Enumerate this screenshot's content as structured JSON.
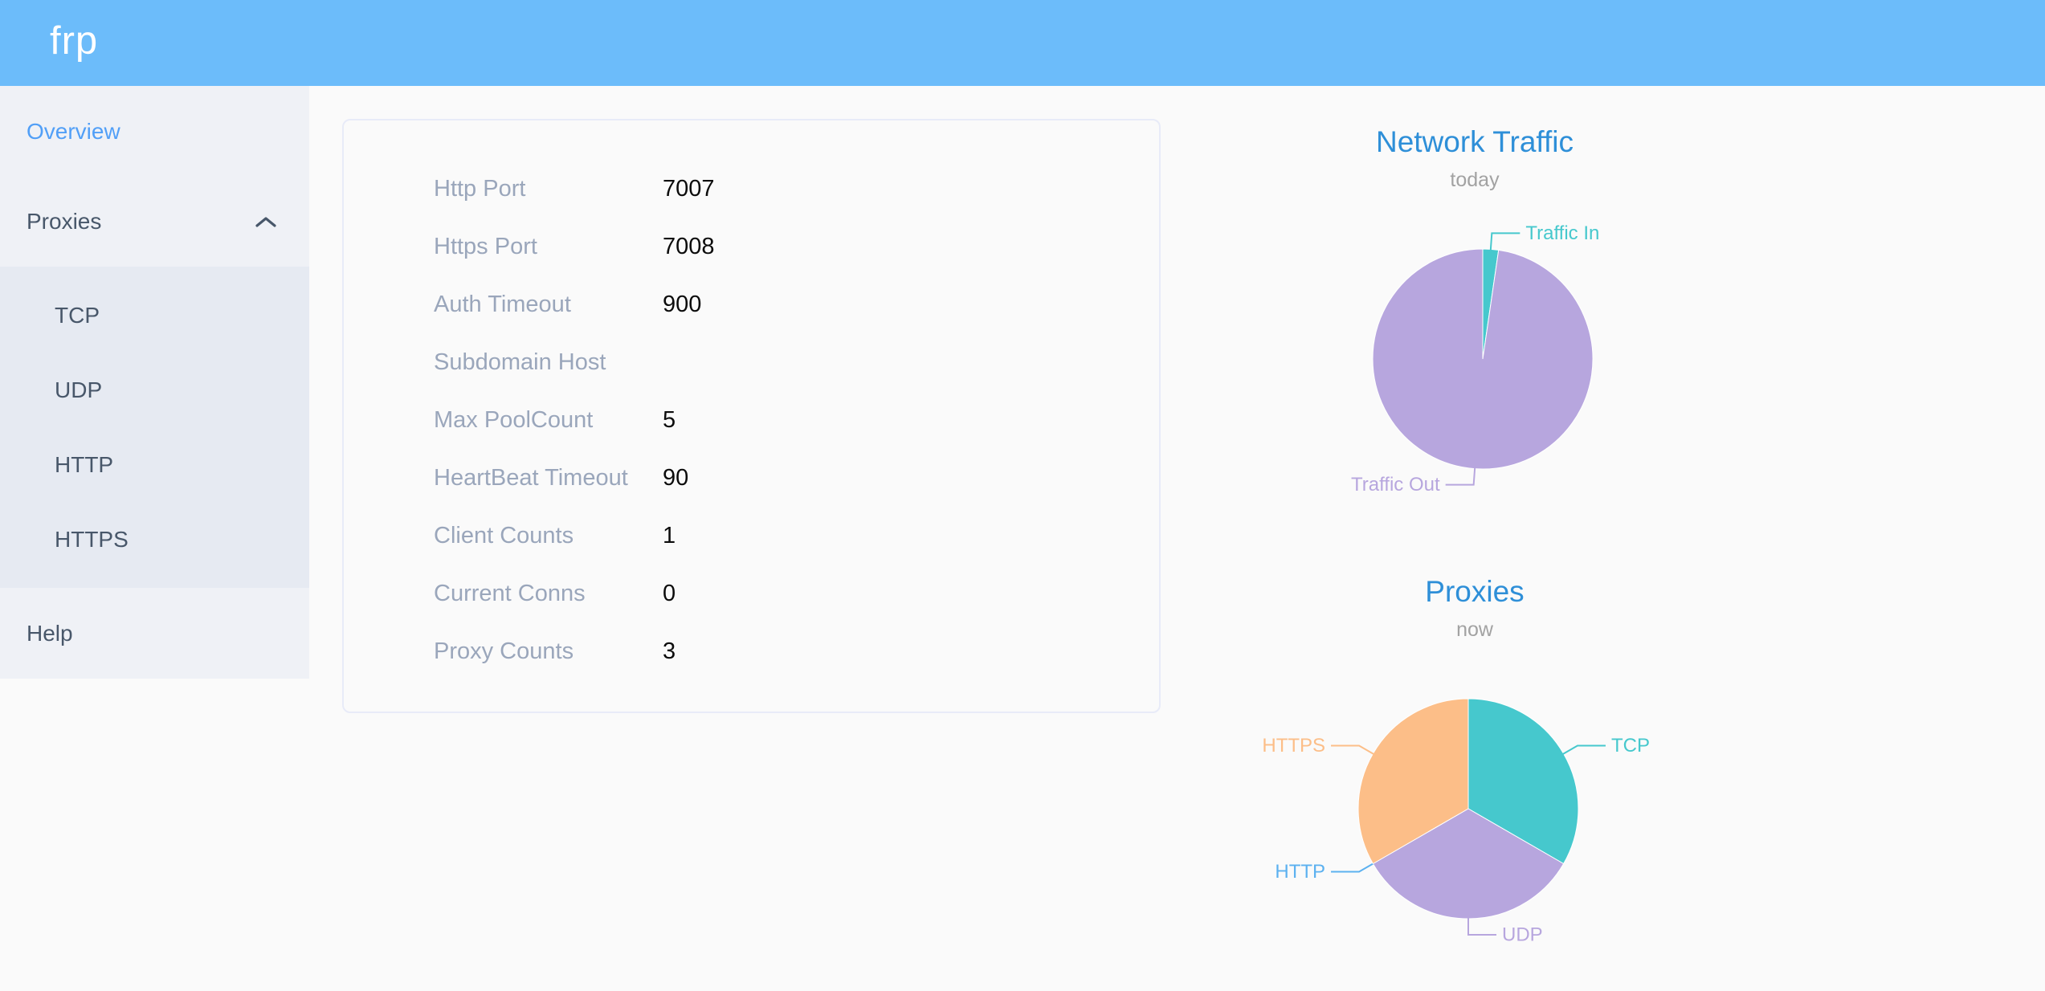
{
  "header": {
    "logo_text": "frp"
  },
  "sidebar": {
    "items": [
      {
        "id": "overview",
        "label": "Overview",
        "active": true
      },
      {
        "id": "proxies",
        "label": "Proxies",
        "expanded": true
      },
      {
        "id": "help",
        "label": "Help"
      }
    ],
    "proxies_children": [
      {
        "label": "TCP"
      },
      {
        "label": "UDP"
      },
      {
        "label": "HTTP"
      },
      {
        "label": "HTTPS"
      }
    ]
  },
  "server_info": {
    "rows": [
      {
        "label": "Http Port",
        "value": "7007"
      },
      {
        "label": "Https Port",
        "value": "7008"
      },
      {
        "label": "Auth Timeout",
        "value": "900"
      },
      {
        "label": "Subdomain Host",
        "value": ""
      },
      {
        "label": "Max PoolCount",
        "value": "5"
      },
      {
        "label": "HeartBeat Timeout",
        "value": "90"
      },
      {
        "label": "Client Counts",
        "value": "1"
      },
      {
        "label": "Current Conns",
        "value": "0"
      },
      {
        "label": "Proxy Counts",
        "value": "3"
      }
    ]
  },
  "chart_data": [
    {
      "type": "pie",
      "title": "Network Traffic",
      "subtitle": "today",
      "legend_position": "none",
      "labels": "outside-leader-lines",
      "value_unit": "percent_share_estimated",
      "series": [
        {
          "name": "Traffic In",
          "value": 2.3,
          "color": "#46c8cd"
        },
        {
          "name": "Traffic Out",
          "value": 97.7,
          "color": "#b7a6de"
        }
      ]
    },
    {
      "type": "pie",
      "title": "Proxies",
      "subtitle": "now",
      "legend_position": "none",
      "labels": "outside-leader-lines",
      "value_unit": "proxy_count",
      "series": [
        {
          "name": "TCP",
          "value": 1,
          "color": "#46c8cd"
        },
        {
          "name": "UDP",
          "value": 1,
          "color": "#b7a6de"
        },
        {
          "name": "HTTP",
          "value": 0,
          "color": "#5cb1f0"
        },
        {
          "name": "HTTPS",
          "value": 1,
          "color": "#fcbe88"
        }
      ]
    }
  ],
  "colors": {
    "header_bg": "#6cbcfa",
    "sidebar_bg": "#eff1f6",
    "submenu_bg": "#e6eaf2",
    "active_item": "#519ff7",
    "menu_text": "#48576a",
    "chart_title": "#2e8fd8",
    "label_gray": "#9aa6bb",
    "page_bg": "#fafafa"
  }
}
